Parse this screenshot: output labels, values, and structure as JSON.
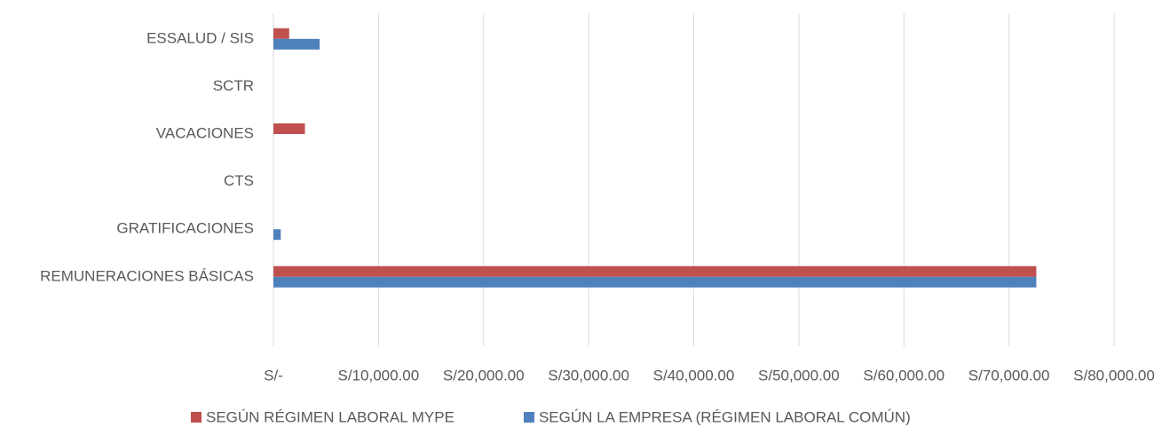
{
  "chart_data": {
    "type": "bar",
    "orientation": "horizontal",
    "categories": [
      "ESSALUD / SIS",
      "SCTR",
      "VACACIONES",
      "CTS",
      "GRATIFICACIONES",
      "REMUNERACIONES BÁSICAS"
    ],
    "series": [
      {
        "name": "SEGÚN RÉGIMEN LABORAL MYPE",
        "color": "#c0504d",
        "values": [
          1500,
          0,
          3000,
          0,
          0,
          72600
        ]
      },
      {
        "name": "SEGÚN LA EMPRESA (RÉGIMEN LABORAL COMÚN)",
        "color": "#4f81bd",
        "values": [
          4400,
          0,
          0,
          0,
          700,
          72600
        ]
      }
    ],
    "xlim": [
      0,
      80000
    ],
    "xticks": [
      {
        "value": 0,
        "label": "S/-"
      },
      {
        "value": 10000,
        "label": "S/10,000.00"
      },
      {
        "value": 20000,
        "label": "S/20,000.00"
      },
      {
        "value": 30000,
        "label": "S/30,000.00"
      },
      {
        "value": 40000,
        "label": "S/40,000.00"
      },
      {
        "value": 50000,
        "label": "S/50,000.00"
      },
      {
        "value": 60000,
        "label": "S/60,000.00"
      },
      {
        "value": 70000,
        "label": "S/70,000.00"
      },
      {
        "value": 80000,
        "label": "S/80,000.00"
      }
    ],
    "grid": true,
    "legend": "bottom"
  }
}
